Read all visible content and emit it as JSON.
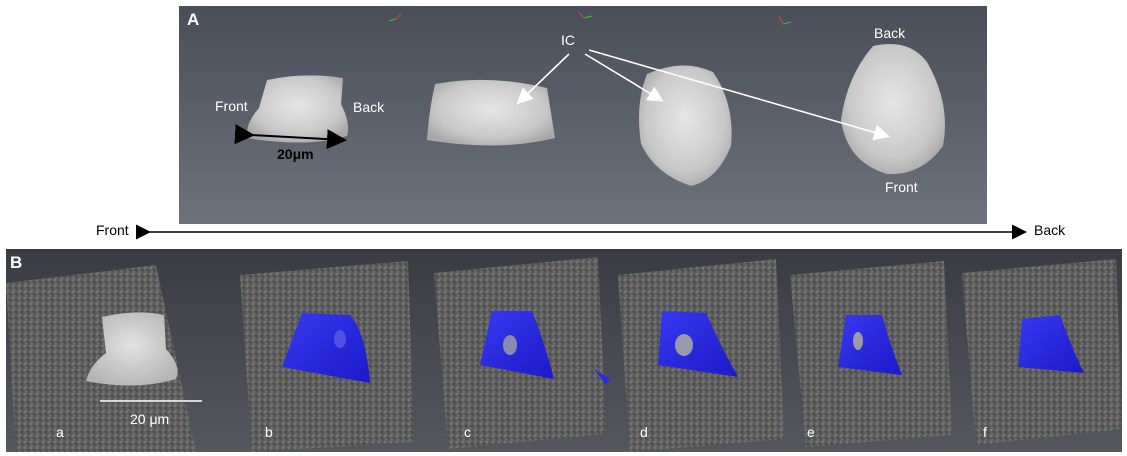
{
  "panel_a": {
    "letter": "A",
    "ic_label": "IC",
    "front_label_1": "Front",
    "back_label_1": "Back",
    "scale_label": "20μm",
    "back_label_2": "Back",
    "front_label_2": "Front"
  },
  "axis": {
    "front": "Front",
    "back": "Back"
  },
  "panel_b": {
    "letter": "B",
    "scale_label": "20 μm",
    "slices": [
      "a",
      "b",
      "c",
      "d",
      "e",
      "f"
    ]
  },
  "colors": {
    "highlight_blue": "#2626e0",
    "cell_gray": "#c8c8c8"
  }
}
